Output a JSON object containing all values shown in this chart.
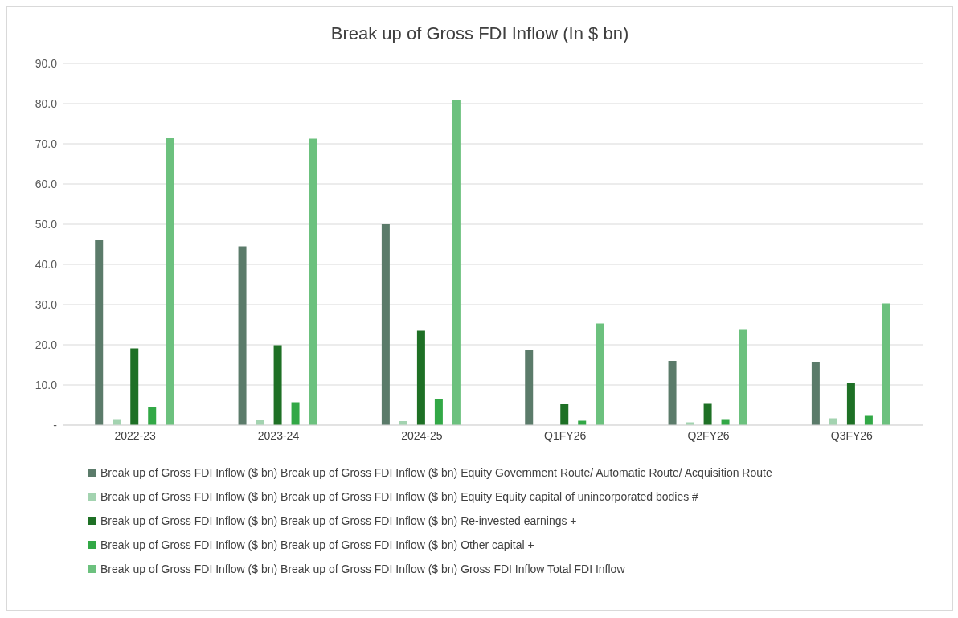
{
  "chart_data": {
    "type": "bar",
    "title": "Break up of Gross FDI Inflow (In $ bn)",
    "categories": [
      "2022-23",
      "2023-24",
      "2024-25",
      "Q1FY26",
      "Q2FY26",
      "Q3FY26"
    ],
    "series": [
      {
        "name": "Break up of Gross FDI Inflow ($ bn) Break up of Gross FDI Inflow ($ bn) Equity Government Route/  Automatic Route/ Acquisition Route",
        "color": "#5b7b6a",
        "values": [
          46.0,
          44.5,
          50.0,
          18.6,
          16.0,
          15.6
        ]
      },
      {
        "name": "Break up of Gross FDI Inflow ($ bn) Break up of Gross FDI Inflow ($ bn) Equity Equity capital of unincorporated bodies #",
        "color": "#a3d3b0",
        "values": [
          1.5,
          1.2,
          1.0,
          0.0,
          0.7,
          1.7
        ]
      },
      {
        "name": "Break up of Gross FDI Inflow ($ bn) Break up of Gross FDI Inflow ($ bn) Re-invested earnings +",
        "color": "#1e7025",
        "values": [
          19.1,
          19.9,
          23.5,
          5.2,
          5.3,
          10.4
        ]
      },
      {
        "name": "Break up of Gross FDI Inflow ($ bn) Break up of Gross FDI Inflow ($ bn) Other capital +",
        "color": "#32a846",
        "values": [
          4.5,
          5.7,
          6.6,
          1.1,
          1.5,
          2.3
        ]
      },
      {
        "name": "Break up of Gross FDI Inflow ($ bn) Break up of Gross FDI Inflow ($ bn) Gross FDI Inflow Total FDI Inflow",
        "color": "#6cc17e",
        "values": [
          71.4,
          71.3,
          81.0,
          25.3,
          23.7,
          30.3
        ]
      }
    ],
    "ylim": [
      0,
      90
    ],
    "yticks": [
      {
        "value": 0,
        "label": "-"
      },
      {
        "value": 10,
        "label": "10.0"
      },
      {
        "value": 20,
        "label": "20.0"
      },
      {
        "value": 30,
        "label": "30.0"
      },
      {
        "value": 40,
        "label": "40.0"
      },
      {
        "value": 50,
        "label": "50.0"
      },
      {
        "value": 60,
        "label": "60.0"
      },
      {
        "value": 70,
        "label": "70.0"
      },
      {
        "value": 80,
        "label": "80.0"
      },
      {
        "value": 90,
        "label": "90.0"
      }
    ],
    "grid": "y",
    "legend": "bottom"
  }
}
